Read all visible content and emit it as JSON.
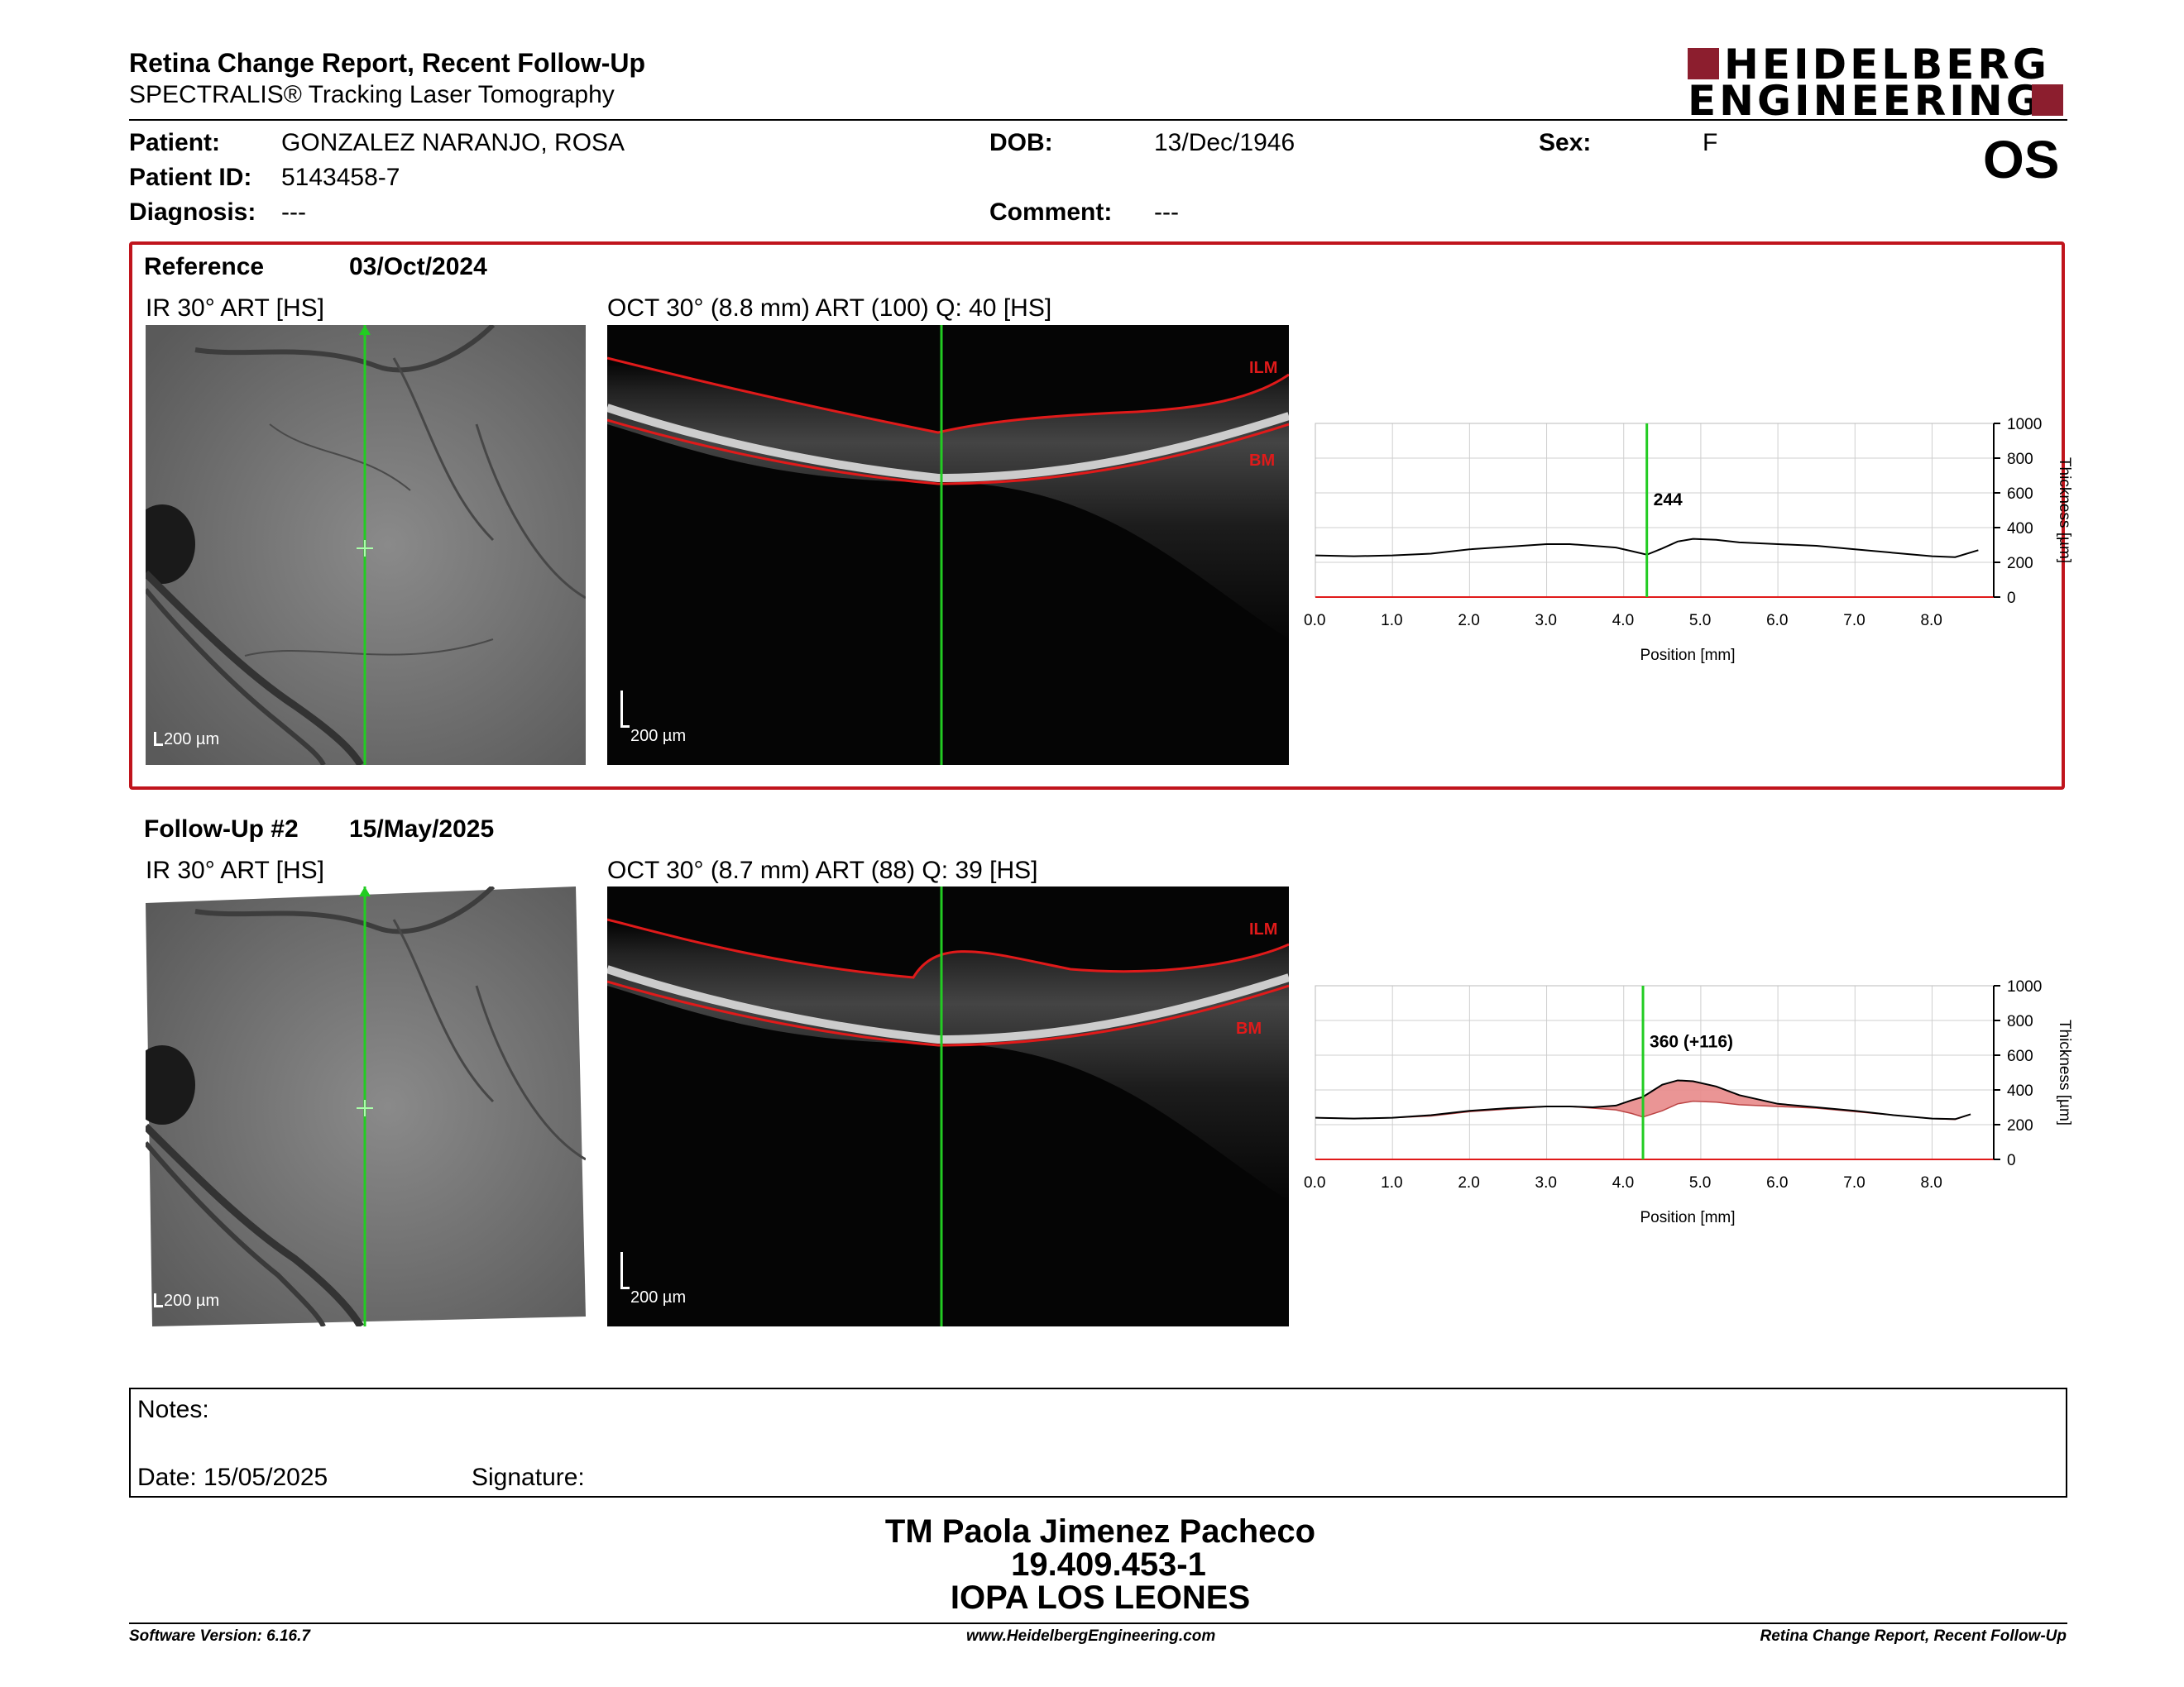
{
  "header": {
    "title": "Retina Change Report, Recent Follow-Up",
    "subtitle": "SPECTRALIS® Tracking Laser Tomography",
    "logo_line1": "HEIDELBERG",
    "logo_line2": "ENGINEERING",
    "eye": "OS"
  },
  "patient": {
    "patient_label": "Patient:",
    "patient_value": "GONZALEZ NARANJO, ROSA",
    "id_label": "Patient ID:",
    "id_value": "5143458-7",
    "diagnosis_label": "Diagnosis:",
    "diagnosis_value": "---",
    "dob_label": "DOB:",
    "dob_value": "13/Dec/1946",
    "comment_label": "Comment:",
    "comment_value": "---",
    "sex_label": "Sex:",
    "sex_value": "F"
  },
  "reference": {
    "label": "Reference",
    "date": "03/Oct/2024",
    "ir_title": "IR 30° ART [HS]",
    "oct_title": "OCT 30° (8.8 mm) ART (100) Q: 40 [HS]",
    "ir_scale": "200 µm",
    "oct_scale": "200 µm",
    "ilm": "ILM",
    "bm": "BM"
  },
  "followup": {
    "label": "Follow-Up #2",
    "date": "15/May/2025",
    "ir_title": "IR 30° ART [HS]",
    "oct_title": "OCT 30° (8.7 mm) ART (88) Q: 39 [HS]",
    "ir_scale": "200 µm",
    "oct_scale": "200 µm",
    "ilm": "ILM",
    "bm": "BM"
  },
  "chart_data": [
    {
      "type": "line",
      "xlabel": "Position [mm]",
      "ylabel": "Thickness [µm]",
      "xlim": [
        0,
        8.8
      ],
      "ylim": [
        0,
        1000
      ],
      "xticks": [
        "0.0",
        "1.0",
        "2.0",
        "3.0",
        "4.0",
        "5.0",
        "6.0",
        "7.0",
        "8.0"
      ],
      "yticks": [
        "0",
        "200",
        "400",
        "600",
        "800",
        "1000"
      ],
      "marker_x": 4.3,
      "marker_label": "244",
      "series": [
        {
          "x": [
            0.0,
            0.5,
            1.0,
            1.5,
            2.0,
            2.5,
            3.0,
            3.3,
            3.6,
            3.9,
            4.1,
            4.3,
            4.5,
            4.7,
            4.9,
            5.2,
            5.5,
            6.0,
            6.5,
            7.0,
            7.5,
            8.0,
            8.3,
            8.6
          ],
          "values": [
            240,
            235,
            240,
            250,
            275,
            290,
            305,
            305,
            295,
            285,
            265,
            244,
            280,
            320,
            335,
            330,
            315,
            305,
            295,
            275,
            255,
            235,
            230,
            270
          ]
        }
      ]
    },
    {
      "type": "area",
      "xlabel": "Position [mm]",
      "ylabel": "Thickness [µm]",
      "xlim": [
        0,
        8.8
      ],
      "ylim": [
        0,
        1000
      ],
      "xticks": [
        "0.0",
        "1.0",
        "2.0",
        "3.0",
        "4.0",
        "5.0",
        "6.0",
        "7.0",
        "8.0"
      ],
      "yticks": [
        "0",
        "200",
        "400",
        "600",
        "800",
        "1000"
      ],
      "marker_x": 4.25,
      "marker_label": "360 (+116)",
      "series": [
        {
          "x": [
            0.0,
            0.5,
            1.0,
            1.5,
            2.0,
            2.5,
            3.0,
            3.3,
            3.6,
            3.9,
            4.1,
            4.25,
            4.5,
            4.7,
            4.9,
            5.2,
            5.5,
            6.0,
            6.5,
            7.0,
            7.5,
            8.0,
            8.3,
            8.5
          ],
          "values": [
            240,
            235,
            240,
            255,
            280,
            295,
            305,
            305,
            300,
            310,
            340,
            360,
            430,
            455,
            450,
            420,
            370,
            320,
            300,
            280,
            255,
            235,
            232,
            260
          ]
        },
        {
          "x": [
            0.0,
            0.5,
            1.0,
            1.5,
            2.0,
            2.5,
            3.0,
            3.3,
            3.6,
            3.9,
            4.1,
            4.25,
            4.5,
            4.7,
            4.9,
            5.2,
            5.5,
            6.0,
            6.5,
            7.0,
            7.5,
            8.0,
            8.3,
            8.5
          ],
          "values": [
            240,
            235,
            240,
            250,
            275,
            290,
            305,
            305,
            295,
            285,
            265,
            244,
            280,
            320,
            335,
            330,
            315,
            305,
            295,
            275,
            255,
            235,
            230,
            260
          ]
        }
      ]
    }
  ],
  "notes": {
    "notes_label": "Notes:",
    "date_label": "Date: 15/05/2025",
    "signature_label": "Signature:"
  },
  "signoff": {
    "name": "TM Paola Jimenez Pacheco",
    "rut": "19.409.453-1",
    "org": "IOPA LOS LEONES"
  },
  "footer": {
    "software": "Software Version: 6.16.7",
    "website": "www.HeidelbergEngineering.com",
    "report": "Retina Change Report, Recent Follow-Up"
  },
  "colors": {
    "brand": "#8c1e2e",
    "box": "#c0141c",
    "marker": "#22cc22",
    "ilm": "#e01a1a",
    "increase_fill": "#e88a8a"
  }
}
